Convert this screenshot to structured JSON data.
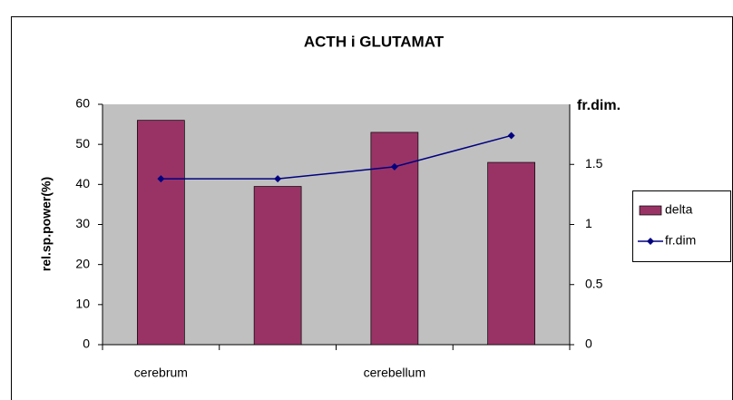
{
  "chart_data": {
    "type": "bar-line",
    "title": "ACTH i GLUTAMAT",
    "y_label": "rel.sp.power(%)",
    "y2_label": "fr.dim.",
    "categories": [
      "cerebrum",
      null,
      "cerebellum",
      null
    ],
    "series": [
      {
        "name": "delta",
        "type": "bar",
        "color": "#993366",
        "values": [
          56,
          39.5,
          53,
          45.5
        ]
      },
      {
        "name": "fr.dim",
        "type": "line",
        "color": "#000080",
        "axis": "y2",
        "values": [
          1.38,
          1.38,
          1.48,
          1.74
        ]
      }
    ],
    "ylim": [
      0,
      60
    ],
    "yticks": [
      0,
      10,
      20,
      30,
      40,
      50,
      60
    ],
    "y2lim": [
      0,
      2
    ],
    "y2ticks": [
      0,
      0.5,
      1,
      1.5
    ],
    "legend": "right"
  }
}
